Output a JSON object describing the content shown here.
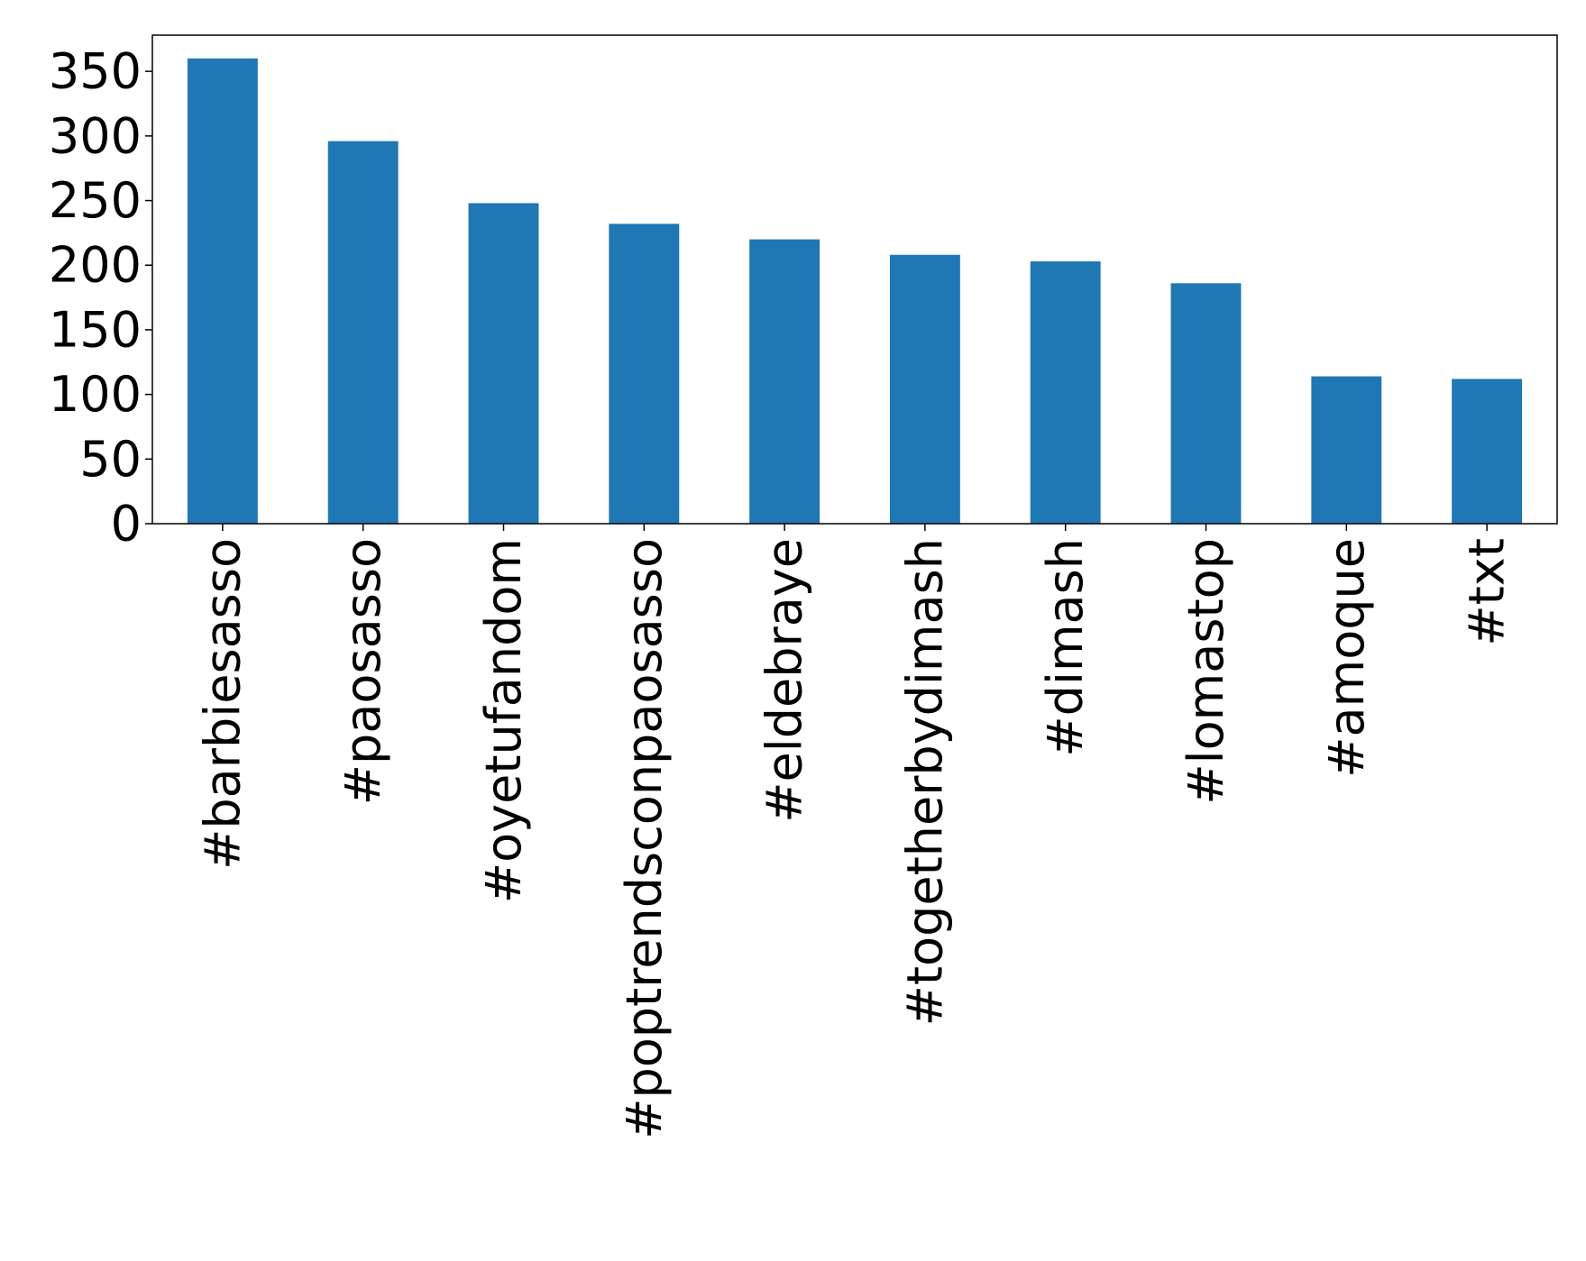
{
  "chart_data": {
    "type": "bar",
    "categories": [
      "#barbiesasso",
      "#paosasso",
      "#oyetufandom",
      "#poptrendsconpaosasso",
      "#eldebraye",
      "#togetherbydimash",
      "#dimash",
      "#lomastop",
      "#amoque",
      "#txt"
    ],
    "values": [
      360,
      296,
      248,
      232,
      220,
      208,
      203,
      186,
      114,
      112
    ],
    "color": "#1f77b4",
    "ylim": [
      0,
      378
    ],
    "yticks": [
      0,
      50,
      100,
      150,
      200,
      250,
      300,
      350
    ],
    "grid": false
  }
}
